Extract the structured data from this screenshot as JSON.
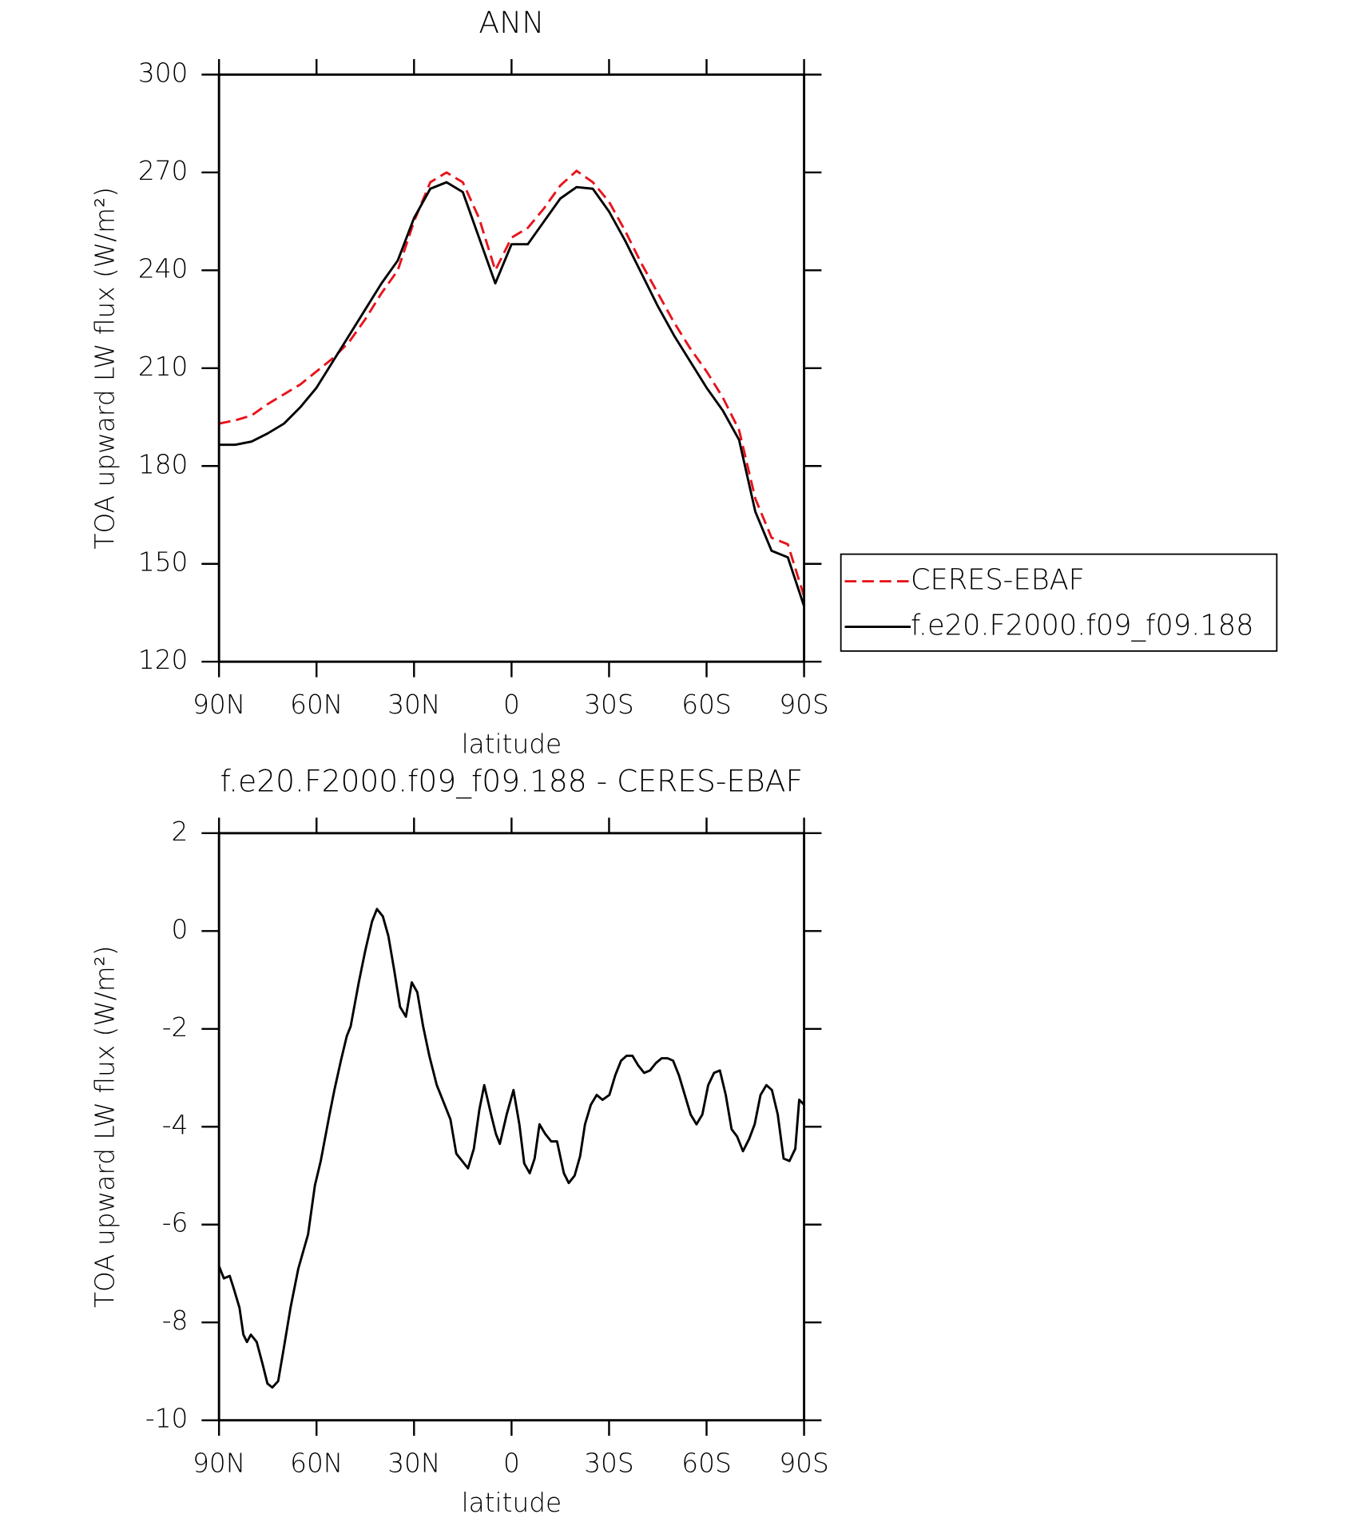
{
  "chart_data": [
    {
      "type": "line",
      "title": "ANN",
      "xlabel": "latitude",
      "ylabel": "TOA upward LW flux (W/m²)",
      "x": [
        90,
        85,
        80,
        75,
        70,
        65,
        60,
        55,
        50,
        45,
        40,
        35,
        30,
        25,
        20,
        15,
        10,
        5,
        0,
        -5,
        -10,
        -15,
        -20,
        -25,
        -30,
        -35,
        -40,
        -45,
        -50,
        -55,
        -60,
        -65,
        -70,
        -75,
        -80,
        -85,
        -90
      ],
      "series": [
        {
          "name": "CERES-EBAF",
          "color": "#e8131b",
          "line_style": "dashed",
          "values": [
            193,
            194,
            195.5,
            199,
            202,
            205,
            209,
            213,
            218,
            225,
            233,
            240,
            255,
            267,
            270,
            267,
            256,
            240,
            250,
            253,
            259,
            266,
            270.5,
            267,
            261,
            252,
            242,
            233,
            224,
            216,
            209,
            201,
            191,
            170,
            158,
            156,
            140
          ]
        },
        {
          "name": "f.e20.F2000.f09_f09.188",
          "color": "#000000",
          "line_style": "solid",
          "values": [
            186.5,
            186.5,
            187.5,
            190,
            193,
            198,
            204,
            212,
            220,
            228,
            236,
            243,
            256,
            265,
            267,
            264,
            250,
            236,
            248,
            248,
            255,
            262,
            265.5,
            265,
            258,
            249,
            239,
            229,
            220,
            212,
            204,
            197,
            188,
            166,
            154,
            152,
            137
          ]
        }
      ],
      "xlim": [
        90,
        -90
      ],
      "xticks": [
        {
          "value": 90,
          "label": "90N"
        },
        {
          "value": 60,
          "label": "60N"
        },
        {
          "value": 30,
          "label": "30N"
        },
        0,
        {
          "value": -30,
          "label": "30S"
        },
        {
          "value": -60,
          "label": "60S"
        },
        {
          "value": -90,
          "label": "90S"
        }
      ],
      "ylim": [
        120,
        300
      ],
      "yticks": [
        120,
        150,
        180,
        210,
        240,
        270,
        300
      ],
      "legend": "outside right"
    },
    {
      "type": "line",
      "title": "f.e20.F2000.f09_f09.188 - CERES-EBAF",
      "xlabel": "latitude",
      "ylabel": "TOA upward LW flux (W/m²)",
      "x": [
        90,
        88.5,
        86.7,
        85.5,
        83.7,
        82.5,
        81.4,
        80.2,
        78.4,
        76.6,
        75.1,
        73.6,
        71.8,
        70,
        68,
        65.6,
        62.6,
        60.5,
        58.7,
        56,
        54.5,
        52.5,
        50.7,
        49.5,
        47,
        45,
        42.9,
        41.4,
        39.6,
        37.9,
        36.1,
        34.3,
        32.5,
        30.7,
        29,
        27.2,
        25.3,
        23,
        21.2,
        18.8,
        17,
        15.2,
        13.4,
        11.6,
        9.9,
        8.4,
        6.3,
        4.8,
        3.6,
        1.5,
        -0.6,
        -2.4,
        -3.9,
        -5.6,
        -7.1,
        -8.6,
        -10.4,
        -12.2,
        -14,
        -16.1,
        -17.6,
        -19.4,
        -21.1,
        -22.6,
        -24.4,
        -26.2,
        -28,
        -30.1,
        -31.9,
        -33.7,
        -35.4,
        -37.2,
        -39,
        -40.8,
        -42.6,
        -44.4,
        -46.2,
        -48,
        -49.7,
        -51.5,
        -53.3,
        -55.1,
        -56.9,
        -58.7,
        -60.5,
        -62.3,
        -64.1,
        -65.9,
        -67.7,
        -69.4,
        -71.2,
        -73.1,
        -74.8,
        -76.6,
        -78.4,
        -80.1,
        -81.9,
        -83.7,
        -85.5,
        -87.3,
        -88.5,
        -90
      ],
      "values": [
        -6.85,
        -7.1,
        -7.05,
        -7.3,
        -7.7,
        -8.25,
        -8.4,
        -8.25,
        -8.4,
        -8.85,
        -9.25,
        -9.33,
        -9.2,
        -8.5,
        -7.7,
        -6.9,
        -6.2,
        -5.2,
        -4.7,
        -3.75,
        -3.25,
        -2.65,
        -2.15,
        -1.95,
        -1.05,
        -0.4,
        0.2,
        0.45,
        0.3,
        -0.1,
        -0.8,
        -1.55,
        -1.75,
        -1.05,
        -1.25,
        -1.95,
        -2.55,
        -3.15,
        -3.45,
        -3.85,
        -4.55,
        -4.7,
        -4.85,
        -4.45,
        -3.65,
        -3.15,
        -3.75,
        -4.15,
        -4.35,
        -3.75,
        -3.25,
        -3.95,
        -4.75,
        -4.95,
        -4.65,
        -3.95,
        -4.15,
        -4.3,
        -4.3,
        -4.95,
        -5.15,
        -5,
        -4.6,
        -3.95,
        -3.55,
        -3.35,
        -3.45,
        -3.35,
        -2.95,
        -2.65,
        -2.55,
        -2.55,
        -2.75,
        -2.9,
        -2.85,
        -2.7,
        -2.6,
        -2.6,
        -2.65,
        -2.95,
        -3.35,
        -3.75,
        -3.95,
        -3.75,
        -3.15,
        -2.9,
        -2.85,
        -3.35,
        -4.05,
        -4.2,
        -4.5,
        -4.25,
        -3.95,
        -3.35,
        -3.15,
        -3.25,
        -3.75,
        -4.65,
        -4.7,
        -4.45,
        -3.45,
        -3.55
      ],
      "color": "#000000",
      "xlim": [
        90,
        -90
      ],
      "xticks": [
        {
          "value": 90,
          "label": "90N"
        },
        {
          "value": 60,
          "label": "60N"
        },
        {
          "value": 30,
          "label": "30N"
        },
        0,
        {
          "value": -30,
          "label": "30S"
        },
        {
          "value": -60,
          "label": "60S"
        },
        {
          "value": -90,
          "label": "90S"
        }
      ],
      "ylim": [
        -10,
        2
      ],
      "yticks": [
        -10,
        -8,
        -6,
        -4,
        -2,
        0,
        2
      ]
    }
  ]
}
